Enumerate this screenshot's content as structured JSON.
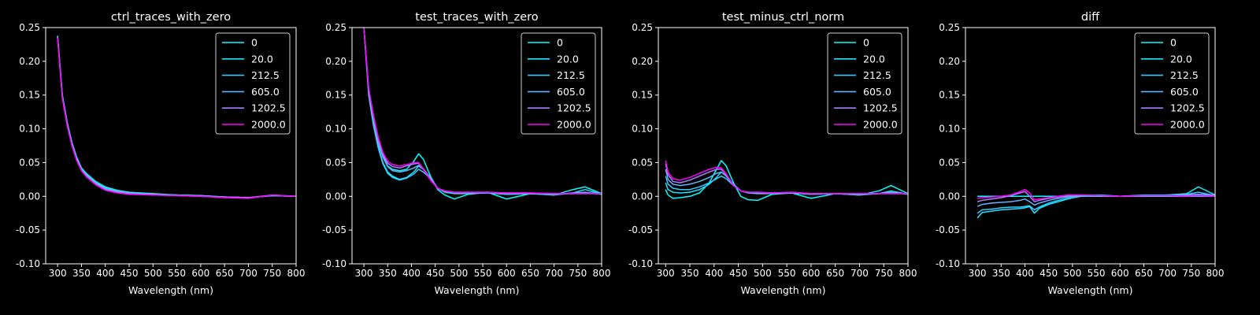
{
  "chart_data": [
    {
      "type": "line",
      "title": "ctrl_traces_with_zero",
      "xlabel": "Wavelength (nm)",
      "ylabel": "",
      "xlim": [
        275,
        800
      ],
      "ylim": [
        -0.1,
        0.25
      ],
      "xticks": [
        300,
        350,
        400,
        450,
        500,
        550,
        600,
        650,
        700,
        750,
        800
      ],
      "yticks": [
        -0.1,
        -0.05,
        0.0,
        0.05,
        0.1,
        0.15,
        0.2,
        0.25
      ],
      "legend_position": "top-right",
      "x": [
        300,
        310,
        320,
        330,
        340,
        350,
        360,
        380,
        400,
        425,
        450,
        500,
        550,
        600,
        650,
        700,
        750,
        800
      ],
      "series": [
        {
          "name": "0",
          "color": "#00ffff",
          "values": [
            0.238,
            0.15,
            0.11,
            0.08,
            0.058,
            0.042,
            0.034,
            0.022,
            0.014,
            0.009,
            0.006,
            0.004,
            0.002,
            0.001,
            -0.001,
            -0.002,
            0.001,
            0.0
          ]
        },
        {
          "name": "20.0",
          "color": "#1ae5ff",
          "values": [
            0.237,
            0.149,
            0.109,
            0.079,
            0.057,
            0.041,
            0.033,
            0.021,
            0.013,
            0.008,
            0.006,
            0.003,
            0.002,
            0.001,
            -0.001,
            -0.002,
            0.001,
            0.0
          ]
        },
        {
          "name": "212.5",
          "color": "#33ccff",
          "values": [
            0.236,
            0.148,
            0.108,
            0.078,
            0.056,
            0.04,
            0.032,
            0.02,
            0.012,
            0.008,
            0.005,
            0.003,
            0.002,
            0.0,
            -0.001,
            -0.002,
            0.001,
            0.0
          ]
        },
        {
          "name": "605.0",
          "color": "#66b3ff",
          "values": [
            0.236,
            0.147,
            0.107,
            0.077,
            0.055,
            0.04,
            0.031,
            0.019,
            0.011,
            0.007,
            0.005,
            0.003,
            0.001,
            0.0,
            -0.001,
            -0.002,
            0.001,
            0.0
          ]
        },
        {
          "name": "1202.5",
          "color": "#a880ff",
          "values": [
            0.235,
            0.146,
            0.106,
            0.076,
            0.054,
            0.039,
            0.03,
            0.018,
            0.01,
            0.006,
            0.004,
            0.002,
            0.001,
            0.0,
            -0.001,
            -0.002,
            0.002,
            0.0
          ]
        },
        {
          "name": "2000.0",
          "color": "#ff00ff",
          "values": [
            0.234,
            0.145,
            0.105,
            0.075,
            0.053,
            0.038,
            0.029,
            0.017,
            0.009,
            0.005,
            0.003,
            0.002,
            0.001,
            0.0,
            -0.002,
            -0.003,
            0.002,
            0.0
          ]
        }
      ]
    },
    {
      "type": "line",
      "title": "test_traces_with_zero",
      "xlabel": "Wavelength (nm)",
      "ylabel": "",
      "xlim": [
        275,
        800
      ],
      "ylim": [
        -0.1,
        0.25
      ],
      "xticks": [
        300,
        350,
        400,
        450,
        500,
        550,
        600,
        650,
        700,
        750,
        800
      ],
      "yticks": [
        -0.1,
        -0.05,
        0.0,
        0.05,
        0.1,
        0.15,
        0.2,
        0.25
      ],
      "legend_position": "top-right",
      "x": [
        300,
        310,
        320,
        330,
        340,
        350,
        360,
        375,
        390,
        405,
        415,
        425,
        440,
        455,
        470,
        490,
        520,
        560,
        600,
        650,
        700,
        740,
        765,
        800
      ],
      "series": [
        {
          "name": "0",
          "color": "#00ffff",
          "values": [
            0.25,
            0.16,
            0.12,
            0.085,
            0.06,
            0.045,
            0.04,
            0.038,
            0.04,
            0.052,
            0.063,
            0.055,
            0.03,
            0.01,
            0.002,
            -0.004,
            0.003,
            0.006,
            -0.004,
            0.004,
            0.002,
            0.01,
            0.014,
            0.004
          ]
        },
        {
          "name": "20.0",
          "color": "#1ae5ff",
          "values": [
            0.25,
            0.155,
            0.11,
            0.075,
            0.05,
            0.036,
            0.03,
            0.025,
            0.028,
            0.036,
            0.045,
            0.04,
            0.028,
            0.012,
            0.006,
            0.004,
            0.004,
            0.006,
            0.003,
            0.004,
            0.002,
            0.005,
            0.01,
            0.003
          ]
        },
        {
          "name": "212.5",
          "color": "#33ccff",
          "values": [
            0.25,
            0.15,
            0.105,
            0.072,
            0.048,
            0.034,
            0.028,
            0.024,
            0.027,
            0.033,
            0.04,
            0.036,
            0.026,
            0.012,
            0.007,
            0.005,
            0.004,
            0.005,
            0.003,
            0.004,
            0.003,
            0.005,
            0.006,
            0.003
          ]
        },
        {
          "name": "605.0",
          "color": "#66b3ff",
          "values": [
            0.25,
            0.155,
            0.112,
            0.08,
            0.058,
            0.044,
            0.038,
            0.036,
            0.038,
            0.042,
            0.046,
            0.04,
            0.027,
            0.012,
            0.007,
            0.005,
            0.005,
            0.006,
            0.004,
            0.004,
            0.003,
            0.004,
            0.005,
            0.004
          ]
        },
        {
          "name": "1202.5",
          "color": "#a880ff",
          "values": [
            0.25,
            0.158,
            0.118,
            0.085,
            0.062,
            0.049,
            0.044,
            0.042,
            0.045,
            0.048,
            0.049,
            0.041,
            0.026,
            0.012,
            0.008,
            0.006,
            0.006,
            0.006,
            0.005,
            0.005,
            0.004,
            0.004,
            0.004,
            0.004
          ]
        },
        {
          "name": "2000.0",
          "color": "#ff00ff",
          "values": [
            0.25,
            0.16,
            0.12,
            0.088,
            0.065,
            0.052,
            0.047,
            0.045,
            0.047,
            0.05,
            0.05,
            0.04,
            0.024,
            0.012,
            0.008,
            0.006,
            0.006,
            0.006,
            0.005,
            0.005,
            0.004,
            0.004,
            0.004,
            0.004
          ]
        }
      ]
    },
    {
      "type": "line",
      "title": "test_minus_ctrl_norm",
      "xlabel": "Wavelength (nm)",
      "ylabel": "",
      "xlim": [
        285,
        800
      ],
      "ylim": [
        -0.1,
        0.25
      ],
      "xticks": [
        300,
        350,
        400,
        450,
        500,
        550,
        600,
        650,
        700,
        750,
        800
      ],
      "yticks": [
        -0.1,
        -0.05,
        0.0,
        0.05,
        0.1,
        0.15,
        0.2,
        0.25
      ],
      "legend_position": "top-right",
      "x": [
        300,
        305,
        315,
        330,
        350,
        370,
        390,
        405,
        415,
        425,
        440,
        455,
        470,
        490,
        520,
        560,
        600,
        650,
        700,
        740,
        765,
        800
      ],
      "series": [
        {
          "name": "0",
          "color": "#00ffff",
          "values": [
            0.01,
            0.002,
            -0.003,
            -0.002,
            0.0,
            0.005,
            0.02,
            0.04,
            0.053,
            0.045,
            0.02,
            0.0,
            -0.005,
            -0.006,
            0.003,
            0.005,
            -0.003,
            0.004,
            0.002,
            0.008,
            0.016,
            0.004
          ]
        },
        {
          "name": "20.0",
          "color": "#1ae5ff",
          "values": [
            0.02,
            0.01,
            0.006,
            0.005,
            0.006,
            0.01,
            0.018,
            0.028,
            0.036,
            0.03,
            0.018,
            0.008,
            0.005,
            0.004,
            0.004,
            0.005,
            0.003,
            0.004,
            0.002,
            0.004,
            0.008,
            0.003
          ]
        },
        {
          "name": "212.5",
          "color": "#33ccff",
          "values": [
            0.03,
            0.018,
            0.012,
            0.01,
            0.01,
            0.014,
            0.02,
            0.026,
            0.03,
            0.026,
            0.016,
            0.008,
            0.006,
            0.005,
            0.004,
            0.005,
            0.003,
            0.004,
            0.003,
            0.004,
            0.006,
            0.003
          ]
        },
        {
          "name": "605.0",
          "color": "#66b3ff",
          "values": [
            0.04,
            0.025,
            0.018,
            0.016,
            0.018,
            0.022,
            0.028,
            0.034,
            0.036,
            0.03,
            0.016,
            0.008,
            0.006,
            0.005,
            0.005,
            0.005,
            0.004,
            0.004,
            0.003,
            0.004,
            0.005,
            0.004
          ]
        },
        {
          "name": "1202.5",
          "color": "#a880ff",
          "values": [
            0.048,
            0.032,
            0.022,
            0.02,
            0.024,
            0.03,
            0.036,
            0.04,
            0.04,
            0.032,
            0.016,
            0.008,
            0.006,
            0.006,
            0.005,
            0.006,
            0.004,
            0.004,
            0.004,
            0.004,
            0.004,
            0.004
          ]
        },
        {
          "name": "2000.0",
          "color": "#ff00ff",
          "values": [
            0.053,
            0.036,
            0.026,
            0.024,
            0.028,
            0.034,
            0.04,
            0.043,
            0.042,
            0.033,
            0.016,
            0.008,
            0.006,
            0.006,
            0.005,
            0.006,
            0.004,
            0.004,
            0.004,
            0.004,
            0.004,
            0.004
          ]
        }
      ]
    },
    {
      "type": "line",
      "title": "diff",
      "xlabel": "Wavelength (nm)",
      "ylabel": "",
      "xlim": [
        275,
        800
      ],
      "ylim": [
        -0.1,
        0.25
      ],
      "xticks": [
        300,
        350,
        400,
        450,
        500,
        550,
        600,
        650,
        700,
        750,
        800
      ],
      "yticks": [
        -0.1,
        -0.05,
        0.0,
        0.05,
        0.1,
        0.15,
        0.2,
        0.25
      ],
      "legend_position": "top-right",
      "x": [
        300,
        310,
        330,
        350,
        370,
        390,
        400,
        410,
        420,
        430,
        450,
        470,
        490,
        520,
        560,
        600,
        650,
        700,
        740,
        765,
        800
      ],
      "series": [
        {
          "name": "0",
          "color": "#00ffff",
          "values": [
            0.0,
            0.0,
            0.0,
            0.0,
            0.0,
            0.0,
            0.0,
            0.0,
            0.0,
            0.0,
            0.0,
            0.0,
            0.0,
            0.0,
            0.0,
            0.0,
            0.0,
            0.0,
            0.0,
            0.0,
            0.0
          ]
        },
        {
          "name": "20.0",
          "color": "#1ae5ff",
          "values": [
            -0.032,
            -0.024,
            -0.022,
            -0.02,
            -0.019,
            -0.018,
            -0.017,
            -0.015,
            -0.025,
            -0.018,
            -0.012,
            -0.008,
            -0.004,
            0.001,
            0.002,
            0.0,
            0.002,
            0.002,
            0.004,
            0.014,
            0.002
          ]
        },
        {
          "name": "212.5",
          "color": "#33ccff",
          "values": [
            -0.025,
            -0.02,
            -0.019,
            -0.017,
            -0.016,
            -0.016,
            -0.015,
            -0.014,
            -0.02,
            -0.016,
            -0.01,
            -0.006,
            -0.003,
            0.0,
            0.001,
            0.0,
            0.001,
            0.002,
            0.003,
            0.006,
            0.001
          ]
        },
        {
          "name": "605.0",
          "color": "#66b3ff",
          "values": [
            -0.015,
            -0.012,
            -0.01,
            -0.009,
            -0.008,
            -0.006,
            -0.004,
            -0.008,
            -0.013,
            -0.01,
            -0.006,
            -0.003,
            -0.001,
            0.001,
            0.001,
            0.0,
            0.001,
            0.001,
            0.002,
            0.003,
            0.001
          ]
        },
        {
          "name": "1202.5",
          "color": "#a880ff",
          "values": [
            -0.008,
            -0.006,
            -0.004,
            -0.002,
            0.001,
            0.005,
            0.007,
            0.0,
            -0.008,
            -0.006,
            -0.003,
            -0.001,
            0.001,
            0.002,
            0.001,
            0.0,
            0.001,
            0.001,
            0.001,
            0.002,
            0.001
          ]
        },
        {
          "name": "2000.0",
          "color": "#ff00ff",
          "values": [
            -0.003,
            -0.002,
            -0.001,
            0.0,
            0.002,
            0.007,
            0.01,
            0.005,
            -0.005,
            -0.004,
            -0.002,
            0.0,
            0.002,
            0.002,
            0.001,
            0.0,
            0.001,
            0.001,
            0.0,
            0.001,
            0.0
          ]
        }
      ]
    }
  ]
}
